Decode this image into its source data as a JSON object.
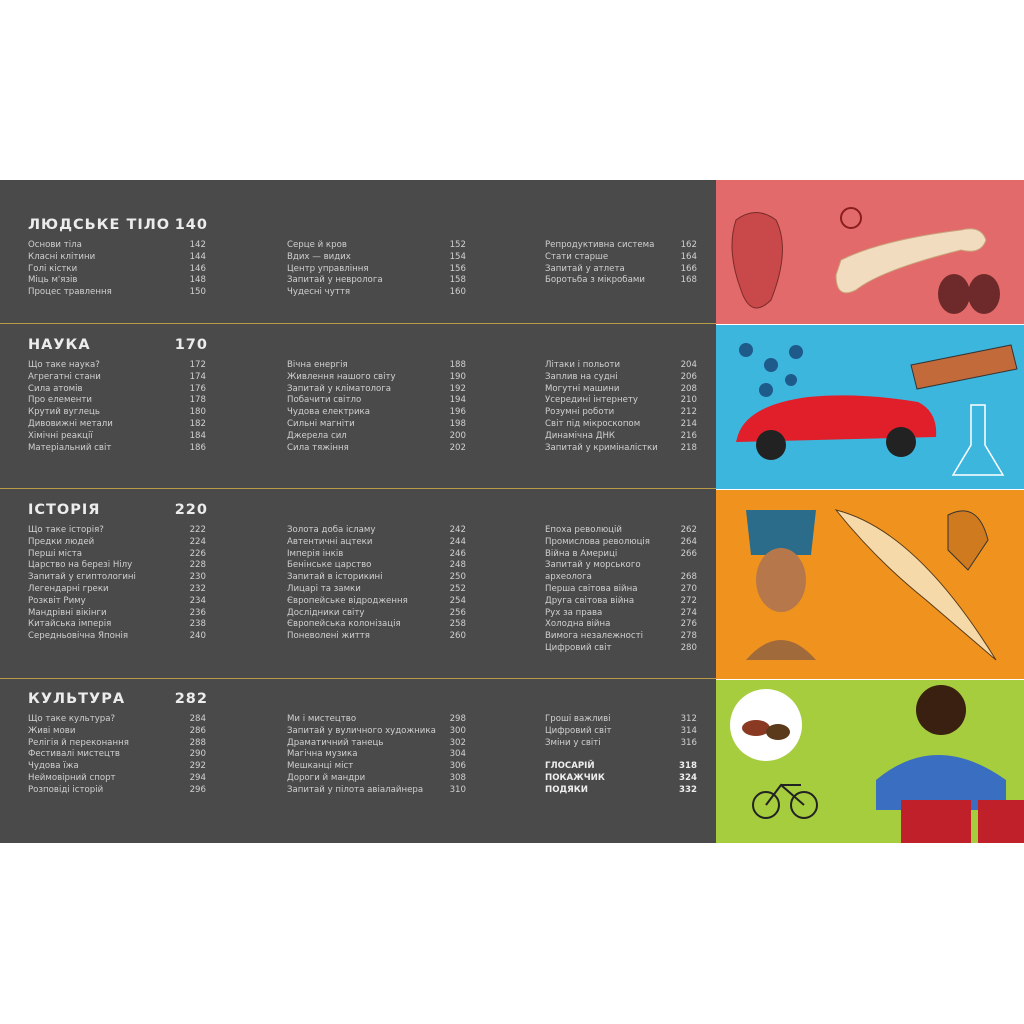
{
  "sections": [
    {
      "title": "ЛЮДСЬКЕ ТІЛО",
      "page": 140,
      "columns": [
        [
          {
            "title": "Основи тіла",
            "page": 142
          },
          {
            "title": "Класні клітини",
            "page": 144
          },
          {
            "title": "Голі кістки",
            "page": 146
          },
          {
            "title": "Міць м'язів",
            "page": 148
          },
          {
            "title": "Процес травлення",
            "page": 150
          }
        ],
        [
          {
            "title": "Серце й кров",
            "page": 152
          },
          {
            "title": "Вдих — видих",
            "page": 154
          },
          {
            "title": "Центр управління",
            "page": 156
          },
          {
            "title": "Запитай у невролога",
            "page": 158
          },
          {
            "title": "Чудесні чуття",
            "page": 160
          }
        ],
        [
          {
            "title": "Репродуктивна система",
            "page": 162
          },
          {
            "title": "Стати старше",
            "page": 164
          },
          {
            "title": "Запитай у атлета",
            "page": 166
          },
          {
            "title": "Боротьба з мікробами",
            "page": 168
          }
        ]
      ]
    },
    {
      "title": "НАУКА",
      "page": 170,
      "columns": [
        [
          {
            "title": "Що таке наука?",
            "page": 172
          },
          {
            "title": "Агрегатні стани",
            "page": 174
          },
          {
            "title": "Сила атомів",
            "page": 176
          },
          {
            "title": "Про елементи",
            "page": 178
          },
          {
            "title": "Крутий вуглець",
            "page": 180
          },
          {
            "title": "Дивовижні метали",
            "page": 182
          },
          {
            "title": "Хімічні реакції",
            "page": 184
          },
          {
            "title": "Матеріальний світ",
            "page": 186
          }
        ],
        [
          {
            "title": "Вічна енергія",
            "page": 188
          },
          {
            "title": "Живлення нашого світу",
            "page": 190
          },
          {
            "title": "Запитай у кліматолога",
            "page": 192
          },
          {
            "title": "Побачити світло",
            "page": 194
          },
          {
            "title": "Чудова електрика",
            "page": 196
          },
          {
            "title": "Сильні магніти",
            "page": 198
          },
          {
            "title": "Джерела сил",
            "page": 200
          },
          {
            "title": "Сила тяжіння",
            "page": 202
          }
        ],
        [
          {
            "title": "Літаки і польоти",
            "page": 204
          },
          {
            "title": "Заплив на судні",
            "page": 206
          },
          {
            "title": "Могутні машини",
            "page": 208
          },
          {
            "title": "Усередині інтернету",
            "page": 210
          },
          {
            "title": "Розумні роботи",
            "page": 212
          },
          {
            "title": "Світ під мікроскопом",
            "page": 214
          },
          {
            "title": "Динамічна ДНК",
            "page": 216
          },
          {
            "title": "Запитай у криміналістки",
            "page": 218
          }
        ]
      ]
    },
    {
      "title": "ІСТОРІЯ",
      "page": 220,
      "columns": [
        [
          {
            "title": "Що таке історія?",
            "page": 222
          },
          {
            "title": "Предки людей",
            "page": 224
          },
          {
            "title": "Перші міста",
            "page": 226
          },
          {
            "title": "Царство на березі Нілу",
            "page": 228
          },
          {
            "title": "Запитай у єгиптологині",
            "page": 230
          },
          {
            "title": "Легендарні греки",
            "page": 232
          },
          {
            "title": "Розквіт Риму",
            "page": 234
          },
          {
            "title": "Мандрівні вікінги",
            "page": 236
          },
          {
            "title": "Китайська імперія",
            "page": 238
          },
          {
            "title": "Середньовічна Японія",
            "page": 240
          }
        ],
        [
          {
            "title": "Золота доба ісламу",
            "page": 242
          },
          {
            "title": "Автентичні ацтеки",
            "page": 244
          },
          {
            "title": "Імперія інків",
            "page": 246
          },
          {
            "title": "Бенінське царство",
            "page": 248
          },
          {
            "title": "Запитай в історикині",
            "page": 250
          },
          {
            "title": "Лицарі та замки",
            "page": 252
          },
          {
            "title": "Європейське відродження",
            "page": 254
          },
          {
            "title": "Дослідники світу",
            "page": 256
          },
          {
            "title": "Європейська колонізація",
            "page": 258
          },
          {
            "title": "Поневолені життя",
            "page": 260
          }
        ],
        [
          {
            "title": "Епоха революцій",
            "page": 262
          },
          {
            "title": "Промислова революція",
            "page": 264
          },
          {
            "title": "Війна в Америці",
            "page": 266
          },
          {
            "title": "Запитай у морського\nархеолога",
            "page": 268
          },
          {
            "title": "Перша світова війна",
            "page": 270
          },
          {
            "title": "Друга світова війна",
            "page": 272
          },
          {
            "title": "Рух за права",
            "page": 274
          },
          {
            "title": "Холодна війна",
            "page": 276
          },
          {
            "title": "Вимога незалежності",
            "page": 278
          },
          {
            "title": "Цифровий світ",
            "page": 280
          }
        ]
      ]
    },
    {
      "title": "КУЛЬТУРА",
      "page": 282,
      "columns": [
        [
          {
            "title": "Що таке культура?",
            "page": 284
          },
          {
            "title": "Живі мови",
            "page": 286
          },
          {
            "title": "Релігія й переконання",
            "page": 288
          },
          {
            "title": "Фестивалі мистецтв",
            "page": 290
          },
          {
            "title": "Чудова їжа",
            "page": 292
          },
          {
            "title": "Неймовірний спорт",
            "page": 294
          },
          {
            "title": "Розповіді історій",
            "page": 296
          }
        ],
        [
          {
            "title": "Ми і мистецтво",
            "page": 298
          },
          {
            "title": "Запитай у вуличного художника",
            "page": 300
          },
          {
            "title": "Драматичний танець",
            "page": 302
          },
          {
            "title": "Магічна музика",
            "page": 304
          },
          {
            "title": "Мешканці міст",
            "page": 306
          },
          {
            "title": "Дороги й мандри",
            "page": 308
          },
          {
            "title": "Запитай у пілота авіалайнера",
            "page": 310
          }
        ],
        [
          {
            "title": "Гроші важливі",
            "page": 312
          },
          {
            "title": "Цифровий світ",
            "page": 314
          },
          {
            "title": "Зміни у світі",
            "page": 316
          }
        ]
      ],
      "back_matter": [
        {
          "title": "ГЛОСАРІЙ",
          "page": 318
        },
        {
          "title": "ПОКАЖЧИК",
          "page": 324
        },
        {
          "title": "ПОДЯКИ",
          "page": 332
        }
      ]
    }
  ]
}
